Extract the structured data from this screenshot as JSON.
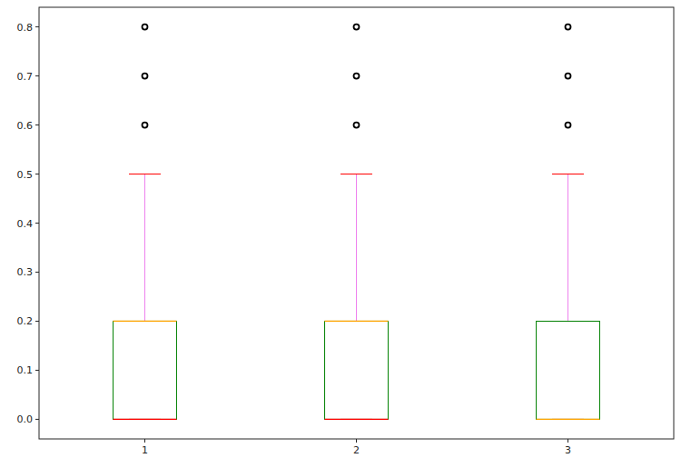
{
  "chart_data": {
    "type": "box",
    "categories": [
      "1",
      "2",
      "3"
    ],
    "boxes": [
      {
        "whisker_low": 0,
        "q1": 0,
        "median": 0,
        "q3": 0.2,
        "whisker_high": 0.5,
        "outliers": [
          0.6,
          0.7,
          0.8
        ]
      },
      {
        "whisker_low": 0,
        "q1": 0,
        "median": 0,
        "q3": 0.2,
        "whisker_high": 0.5,
        "outliers": [
          0.6,
          0.7,
          0.8
        ]
      },
      {
        "whisker_low": 0,
        "q1": 0,
        "median": 0,
        "q3": 0.2,
        "whisker_high": 0.5,
        "outliers": [
          0.6,
          0.7,
          0.8
        ]
      }
    ],
    "ylim": [
      -0.04,
      0.84
    ],
    "yticks": [
      {
        "value": 0,
        "label": "0.0"
      },
      0.1,
      0.2,
      0.3,
      0.4,
      0.5,
      0.6,
      0.7,
      0.8
    ]
  }
}
